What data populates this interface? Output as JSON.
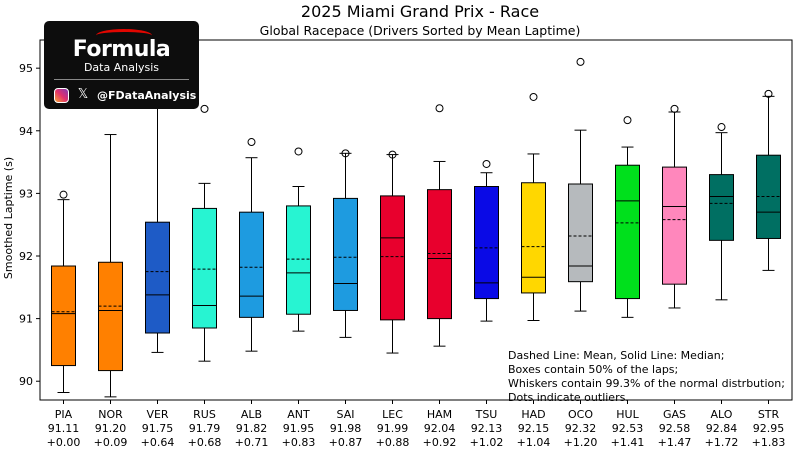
{
  "chart_data": {
    "type": "boxplot",
    "title": "2025 Miami Grand Prix - Race",
    "subtitle": "Global Racepace (Drivers Sorted by Mean Laptime)",
    "ylabel": "Smoothed Laptime (s)",
    "ylim": [
      89.7,
      95.45
    ],
    "yticks": [
      90,
      91,
      92,
      93,
      94,
      95
    ],
    "drivers": [
      {
        "code": "PIA",
        "mean_label": "91.11",
        "gap_label": "+0.00",
        "color": "#ff8000",
        "whisker_low": 89.82,
        "q1": 90.25,
        "median": 91.08,
        "mean": 91.11,
        "q3": 91.84,
        "whisker_high": 92.9,
        "outliers": [
          92.98
        ]
      },
      {
        "code": "NOR",
        "mean_label": "91.20",
        "gap_label": "+0.09",
        "color": "#ff8000",
        "whisker_low": 89.75,
        "q1": 90.17,
        "median": 91.13,
        "mean": 91.2,
        "q3": 91.9,
        "whisker_high": 93.94,
        "outliers": []
      },
      {
        "code": "VER",
        "mean_label": "91.75",
        "gap_label": "+0.64",
        "color": "#1e5bc6",
        "whisker_low": 90.46,
        "q1": 90.77,
        "median": 91.38,
        "mean": 91.75,
        "q3": 92.54,
        "whisker_high": 94.4,
        "outliers": []
      },
      {
        "code": "RUS",
        "mean_label": "91.79",
        "gap_label": "+0.68",
        "color": "#27f4d2",
        "whisker_low": 90.32,
        "q1": 90.85,
        "median": 91.21,
        "mean": 91.79,
        "q3": 92.76,
        "whisker_high": 93.16,
        "outliers": [
          94.35
        ]
      },
      {
        "code": "ALB",
        "mean_label": "91.82",
        "gap_label": "+0.71",
        "color": "#1e9be0",
        "whisker_low": 90.48,
        "q1": 91.02,
        "median": 91.36,
        "mean": 91.82,
        "q3": 92.7,
        "whisker_high": 93.57,
        "outliers": [
          93.82
        ]
      },
      {
        "code": "ANT",
        "mean_label": "91.95",
        "gap_label": "+0.83",
        "color": "#27f4d2",
        "whisker_low": 90.8,
        "q1": 91.07,
        "median": 91.73,
        "mean": 91.95,
        "q3": 92.8,
        "whisker_high": 93.11,
        "outliers": [
          93.67
        ]
      },
      {
        "code": "SAI",
        "mean_label": "91.98",
        "gap_label": "+0.87",
        "color": "#1e9be0",
        "whisker_low": 90.7,
        "q1": 91.13,
        "median": 91.56,
        "mean": 91.98,
        "q3": 92.92,
        "whisker_high": 93.64,
        "outliers": [
          93.64
        ]
      },
      {
        "code": "LEC",
        "mean_label": "91.99",
        "gap_label": "+0.88",
        "color": "#e8002d",
        "whisker_low": 90.45,
        "q1": 90.98,
        "median": 92.29,
        "mean": 91.99,
        "q3": 92.96,
        "whisker_high": 93.62,
        "outliers": [
          93.62
        ]
      },
      {
        "code": "HAM",
        "mean_label": "92.04",
        "gap_label": "+0.92",
        "color": "#e8002d",
        "whisker_low": 90.56,
        "q1": 91.0,
        "median": 91.96,
        "mean": 92.04,
        "q3": 93.06,
        "whisker_high": 93.51,
        "outliers": [
          94.36
        ]
      },
      {
        "code": "TSU",
        "mean_label": "92.13",
        "gap_label": "+1.02",
        "color": "#0a0ae6",
        "whisker_low": 90.96,
        "q1": 91.32,
        "median": 91.57,
        "mean": 92.13,
        "q3": 93.11,
        "whisker_high": 93.33,
        "outliers": [
          93.47
        ]
      },
      {
        "code": "HAD",
        "mean_label": "92.15",
        "gap_label": "+1.04",
        "color": "#ffd700",
        "whisker_low": 90.97,
        "q1": 91.41,
        "median": 91.66,
        "mean": 92.15,
        "q3": 93.17,
        "whisker_high": 93.63,
        "outliers": [
          94.54
        ]
      },
      {
        "code": "OCO",
        "mean_label": "92.32",
        "gap_label": "+1.20",
        "color": "#b6babd",
        "whisker_low": 91.12,
        "q1": 91.59,
        "median": 91.84,
        "mean": 92.32,
        "q3": 93.15,
        "whisker_high": 94.01,
        "outliers": [
          95.1
        ]
      },
      {
        "code": "HUL",
        "mean_label": "92.53",
        "gap_label": "+1.41",
        "color": "#00e01c",
        "whisker_low": 91.02,
        "q1": 91.32,
        "median": 92.88,
        "mean": 92.53,
        "q3": 93.45,
        "whisker_high": 93.74,
        "outliers": [
          94.17
        ]
      },
      {
        "code": "GAS",
        "mean_label": "92.58",
        "gap_label": "+1.47",
        "color": "#ff87bc",
        "whisker_low": 91.17,
        "q1": 91.55,
        "median": 92.79,
        "mean": 92.58,
        "q3": 93.42,
        "whisker_high": 94.3,
        "outliers": [
          94.35
        ]
      },
      {
        "code": "ALO",
        "mean_label": "92.84",
        "gap_label": "+1.72",
        "color": "#006f62",
        "whisker_low": 91.3,
        "q1": 92.25,
        "median": 92.95,
        "mean": 92.84,
        "q3": 93.3,
        "whisker_high": 93.97,
        "outliers": [
          94.06
        ]
      },
      {
        "code": "STR",
        "mean_label": "92.95",
        "gap_label": "+1.83",
        "color": "#006f62",
        "whisker_low": 91.77,
        "q1": 92.28,
        "median": 92.7,
        "mean": 92.95,
        "q3": 93.61,
        "whisker_high": 94.55,
        "outliers": [
          94.59
        ]
      }
    ],
    "annotation": [
      "Dashed Line: Mean, Solid Line: Median;",
      "Boxes contain 50% of the laps;",
      "Whiskers contain 99.3% of the normal distrbution;",
      "Dots indicate outliers."
    ]
  },
  "logo": {
    "title": "Formula",
    "subtitle": "Data Analysis",
    "handle": "@FDataAnalysis",
    "icons": [
      "instagram-icon",
      "x-icon"
    ]
  }
}
